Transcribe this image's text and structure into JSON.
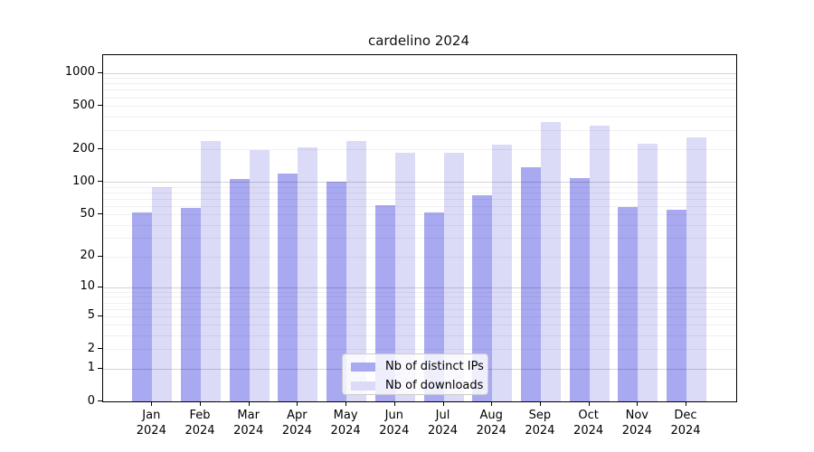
{
  "title": "cardelino 2024",
  "chart_data": {
    "type": "bar",
    "title": "cardelino 2024",
    "xlabel": "",
    "ylabel": "",
    "categories": [
      "Jan 2024",
      "Feb 2024",
      "Mar 2024",
      "Apr 2024",
      "May 2024",
      "Jun 2024",
      "Jul 2024",
      "Aug 2024",
      "Sep 2024",
      "Oct 2024",
      "Nov 2024",
      "Dec 2024"
    ],
    "series": [
      {
        "name": "Nb of distinct IPs",
        "color": "#a9a9f1",
        "values": [
          52,
          57,
          106,
          119,
          100,
          61,
          52,
          75,
          136,
          108,
          59,
          55
        ]
      },
      {
        "name": "Nb of downloads",
        "color": "#dbdbf8",
        "values": [
          90,
          240,
          197,
          208,
          240,
          185,
          185,
          222,
          355,
          330,
          225,
          255
        ]
      }
    ],
    "yticks": [
      0,
      1,
      2,
      5,
      10,
      20,
      50,
      100,
      200,
      500,
      1000
    ],
    "ylim": [
      0,
      1100
    ],
    "yscale": "log10(value+1)",
    "grid": true,
    "legend_position": "lower center inside plot",
    "colors": {
      "bar_distinct_ips": "#a9a9f1",
      "bar_downloads": "#dbdbf8",
      "grid_minor": "rgba(0,0,0,0.06)",
      "grid_major": "rgba(0,0,0,0.17)",
      "spine": "#000000",
      "legend_border": "#cccccc"
    }
  }
}
